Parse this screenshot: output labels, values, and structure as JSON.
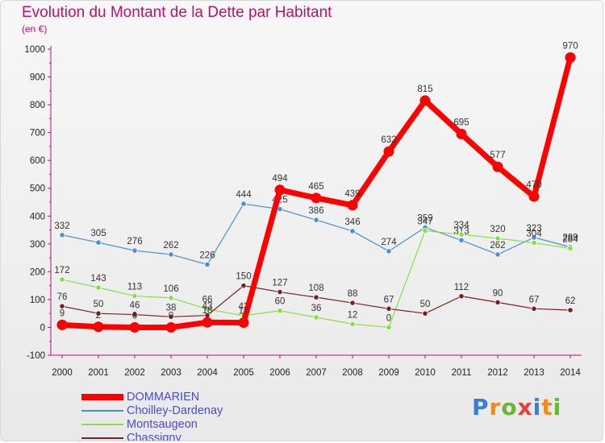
{
  "chart_data": {
    "type": "line",
    "title": "Evolution du Montant de la Dette par Habitant",
    "subtitle": "(en €)",
    "x": [
      "2000",
      "2001",
      "2002",
      "2003",
      "2004",
      "2005",
      "2006",
      "2007",
      "2008",
      "2009",
      "2010",
      "2011",
      "2012",
      "2013",
      "2014"
    ],
    "ylim": [
      -100,
      1000
    ],
    "yticks": [
      -100,
      0,
      100,
      200,
      300,
      400,
      500,
      600,
      700,
      800,
      900,
      1000
    ],
    "grid": false,
    "legend_position": "bottom-left",
    "series": [
      {
        "name": "DOMMARIEN",
        "color": "#ff0000",
        "values": [
          9,
          2,
          0,
          0,
          18,
          17,
          494,
          465,
          439,
          632,
          815,
          695,
          577,
          470,
          970
        ],
        "labels": [
          "9",
          "2",
          "0",
          "0",
          "18",
          "17",
          "494",
          "465",
          "439",
          "632",
          "815",
          "695",
          "577",
          "470",
          "970"
        ]
      },
      {
        "name": "Choilley-Dardenay",
        "color": "#4a90d0",
        "values": [
          332,
          305,
          276,
          262,
          226,
          444,
          425,
          386,
          346,
          274,
          359,
          313,
          262,
          323,
          289
        ],
        "labels": [
          "332",
          "305",
          "276",
          "262",
          "226",
          "444",
          "425",
          "386",
          "346",
          "274",
          "359",
          "313",
          "262",
          "323",
          "289"
        ]
      },
      {
        "name": "Montsaugeon",
        "color": "#88dd44",
        "values": [
          172,
          143,
          113,
          106,
          66,
          42,
          60,
          36,
          12,
          0,
          347,
          334,
          320,
          304,
          284
        ],
        "labels": [
          "172",
          "143",
          "113",
          "106",
          "66",
          "42",
          "60",
          "36",
          "12",
          "0",
          "347",
          "334",
          "320",
          "304",
          "284"
        ]
      },
      {
        "name": "Chassigny",
        "color": "#7a2020",
        "values": [
          76,
          50,
          46,
          38,
          43,
          150,
          127,
          108,
          88,
          67,
          50,
          112,
          90,
          67,
          62
        ],
        "labels": [
          "76",
          "50",
          "46",
          "38",
          "43",
          "150",
          "127",
          "108",
          "88",
          "67",
          "50",
          "112",
          "90",
          "67",
          "62"
        ]
      }
    ]
  },
  "logo": {
    "text": "Proxiti",
    "letter_colors": [
      "#3a7fd5",
      "#f08a1c",
      "#6ab533",
      "#e83e3e",
      "#3a7fd5",
      "#f08a1c",
      "#6ab533"
    ]
  }
}
